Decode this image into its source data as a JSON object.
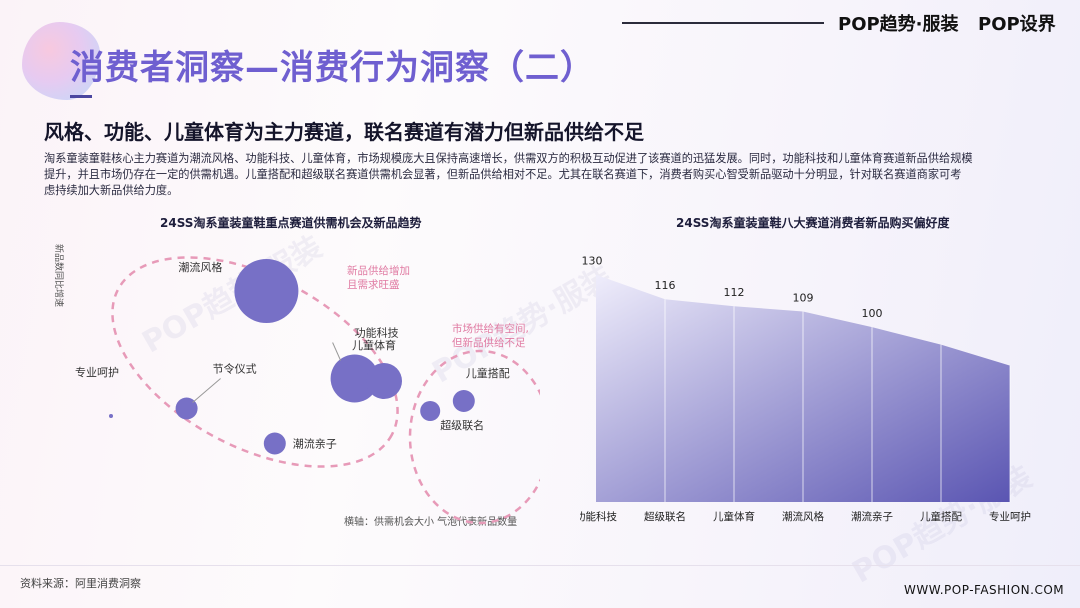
{
  "header": {
    "title": "消费者洞察—消费行为洞察（二）",
    "brand_main": "POP趋势·服装",
    "brand_secondary": "POP设界"
  },
  "subtitle": "风格、功能、儿童体育为主力赛道，联名赛道有潜力但新品供给不足",
  "body_lines": [
    "淘系童装童鞋核心主力赛道为潮流风格、功能科技、儿童体育，市场规模庞大且保持高速增长，供需双方的积极互动促进了该赛道的迅猛发展。同时，功能科技和儿童体育赛道新品供给规模",
    "提升，并且市场仍存在一定的供需机遇。儿童搭配和超级联名赛道供需机会显著，但新品供给相对不足。尤其在联名赛道下，消费者购买心智受新品驱动十分明显，针对联名赛道商家可考",
    "虑持续加大新品供给力度。"
  ],
  "watermark": "POP趋势·服装",
  "footer": {
    "source": "资料来源：阿里消费洞察",
    "url": "WWW.POP-FASHION.COM"
  },
  "colors": {
    "bubble": "#7770c6",
    "title_purple": "#6f5fd0",
    "dashed_pink": "#e79ab8",
    "annotation_pink": "#e07aa2",
    "area_top": "#eceafb",
    "area_bottom": "#5d58b5"
  },
  "chart_data": [
    {
      "type": "scatter",
      "title": "24SS淘系童装童鞋重点赛道供需机会及新品趋势",
      "ylabel": "新品数同比增速",
      "xlabel": "横轴：供需机会大小 气泡代表新品数量",
      "points": [
        {
          "label": "潮流风格",
          "x": 4.2,
          "y": 7.8,
          "size": 32
        },
        {
          "label": "功能科技",
          "x": 6.3,
          "y": 4.3,
          "size": 24
        },
        {
          "label": "儿童体育",
          "x": 7.0,
          "y": 4.2,
          "size": 18
        },
        {
          "label": "专业呵护",
          "x": 0.5,
          "y": 2.8,
          "size": 2
        },
        {
          "label": "节令仪式",
          "x": 2.3,
          "y": 3.1,
          "size": 11
        },
        {
          "label": "潮流亲子",
          "x": 4.4,
          "y": 1.7,
          "size": 11
        },
        {
          "label": "儿童搭配",
          "x": 8.9,
          "y": 3.4,
          "size": 11
        },
        {
          "label": "超级联名",
          "x": 8.1,
          "y": 3.0,
          "size": 10
        }
      ],
      "annotations": [
        {
          "text_lines": [
            "新品供给增加",
            "且需求旺盛"
          ]
        },
        {
          "text_lines": [
            "市场供给有空间,",
            "但新品供给不足"
          ]
        }
      ]
    },
    {
      "type": "area",
      "title": "24SS淘系童装童鞋八大赛道消费者新品购买偏好度",
      "categories": [
        "功能科技",
        "超级联名",
        "儿童体育",
        "潮流风格",
        "潮流亲子",
        "儿童搭配",
        "专业呵护"
      ],
      "values": [
        130,
        116,
        112,
        109,
        100,
        90,
        78
      ],
      "data_labels": [
        "130",
        "116",
        "112",
        "109",
        "100",
        null,
        null
      ],
      "ylim": [
        0,
        135
      ]
    }
  ]
}
